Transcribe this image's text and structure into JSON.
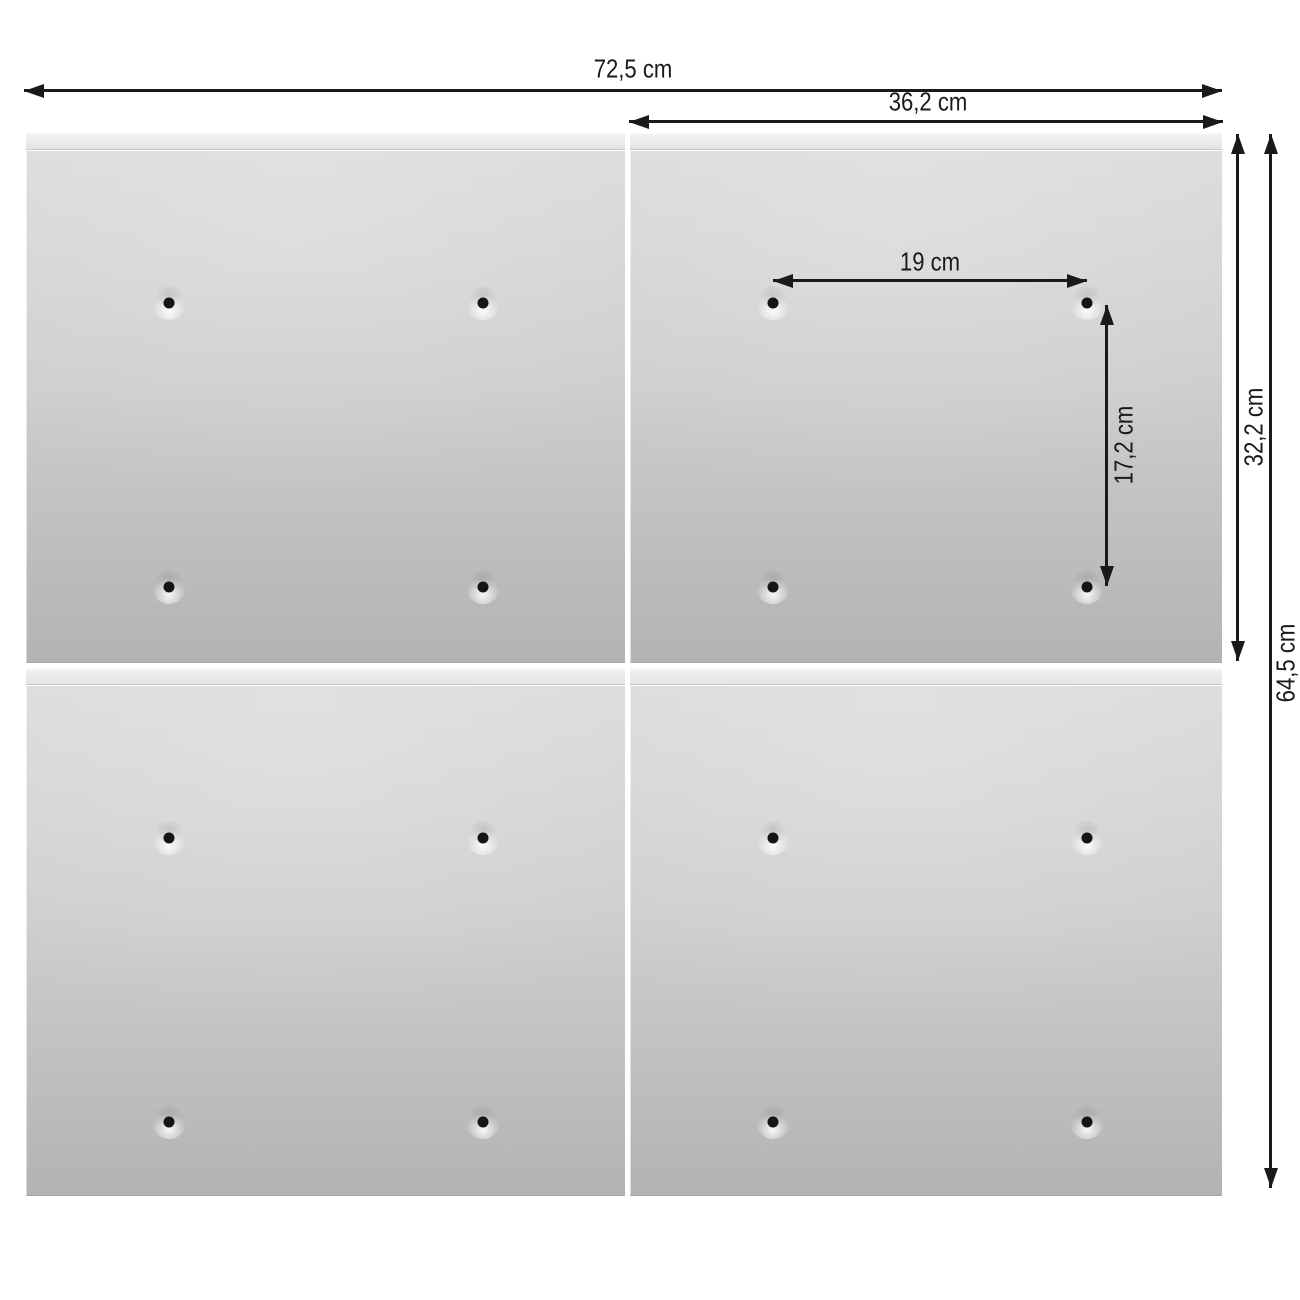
{
  "diagram": {
    "type": "product_dimension_diagram",
    "panels": {
      "rows": 2,
      "cols": 2,
      "holes_per_panel": 4
    },
    "dimensions": {
      "total_width": "72,5 cm",
      "panel_width": "36,2 cm",
      "hole_spacing_width": "19 cm",
      "hole_spacing_height": "17,2 cm",
      "panel_height": "32,2 cm",
      "total_height": "64,5 cm"
    },
    "colors": {
      "background": "#ffffff",
      "dimension_line": "#1a1a1a",
      "panel_rail": "#e9e9e9",
      "panel_top": "#dbdbdb",
      "panel_bottom": "#b3b3b3",
      "hole_dot": "#151515"
    }
  }
}
